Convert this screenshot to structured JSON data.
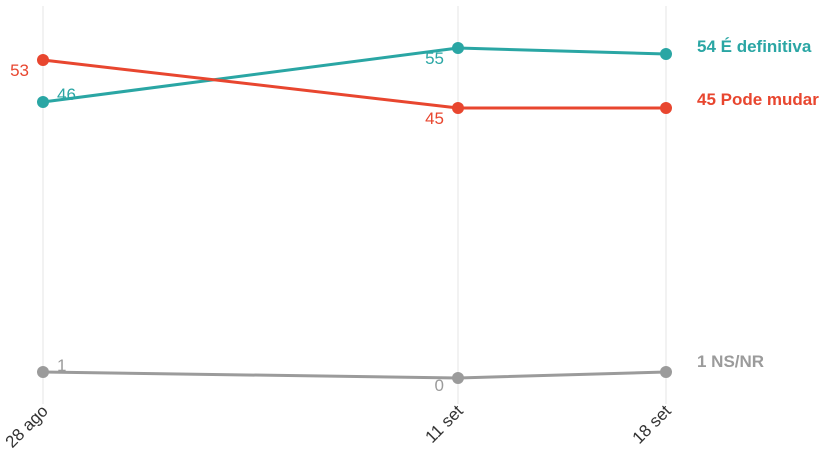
{
  "chart_data": {
    "type": "line",
    "title": "",
    "xlabel": "",
    "ylabel": "",
    "categories": [
      "28 ago",
      "11 set",
      "18 set"
    ],
    "ylim": [
      0,
      56
    ],
    "grid": "vertical lines only",
    "legend": "direct labels at right end",
    "series": [
      {
        "name": "É definitiva",
        "color": "#2aa6a4",
        "values": [
          46,
          55,
          54
        ],
        "point_labels": [
          "46",
          "55",
          ""
        ],
        "end_label": "54 É definitiva"
      },
      {
        "name": "Pode mudar",
        "color": "#e8462f",
        "values": [
          53,
          45,
          45
        ],
        "point_labels": [
          "53",
          "45",
          ""
        ],
        "end_label": "45 Pode mudar"
      },
      {
        "name": "NS/NR",
        "color": "#9b9b9b",
        "values": [
          1,
          0,
          1
        ],
        "point_labels": [
          "1",
          "0",
          ""
        ],
        "end_label": "1 NS/NR"
      }
    ]
  }
}
